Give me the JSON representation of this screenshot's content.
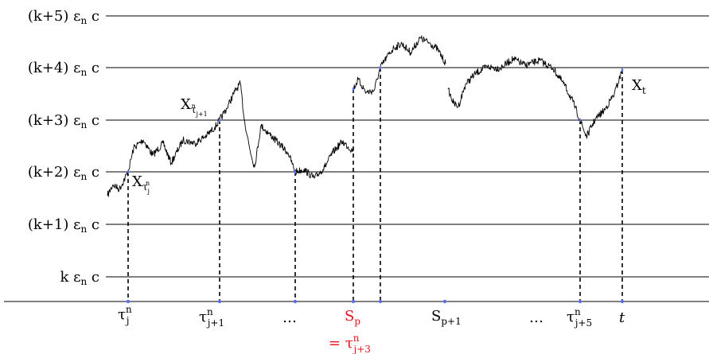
{
  "levels": [
    {
      "label": "(k+5) ε",
      "sub": "n",
      "tail": " c"
    },
    {
      "label": "(k+4) ε",
      "sub": "n",
      "tail": " c"
    },
    {
      "label": "(k+3) ε",
      "sub": "n",
      "tail": " c"
    },
    {
      "label": "(k+2) ε",
      "sub": "n",
      "tail": " c"
    },
    {
      "label": "(k+1) ε",
      "sub": "n",
      "tail": " c"
    },
    {
      "label": "k ε",
      "sub": "n",
      "tail": " c"
    }
  ],
  "time_labels": {
    "tau_j": {
      "base": "τ",
      "sup": "n",
      "sub": "j"
    },
    "tau_j1": {
      "base": "τ",
      "sup": "n",
      "sub": "j+1"
    },
    "dots_1": "…",
    "S_p": {
      "base": "S",
      "sub": "p",
      "color": "#e8101a"
    },
    "eq_tau": {
      "prefix": "= τ",
      "sup": "n",
      "sub": "j+3",
      "color": "#e8101a"
    },
    "S_p1": {
      "base": "S",
      "sub": "p+1"
    },
    "dots_2": "…",
    "tau_j5": {
      "base": "τ",
      "sup": "n",
      "sub": "j+5"
    },
    "t": "t"
  },
  "process_labels": {
    "X_tau_j": {
      "base": "X",
      "sub": "τ",
      "subsub": "j",
      "subsup": "n"
    },
    "X_tau_j1": {
      "base": "X",
      "sub": "τ",
      "subsub": "j+1",
      "subsup": "n"
    },
    "X_t": {
      "base": "X",
      "sub": "t"
    }
  },
  "colors": {
    "marker": "#5a6cf0",
    "highlight": "#e8101a",
    "line": "#000000"
  }
}
